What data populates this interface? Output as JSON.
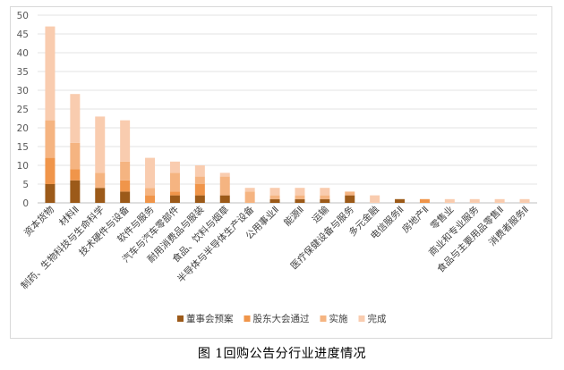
{
  "caption": "图 1回购公告分行业进度情况",
  "chart_data": {
    "type": "bar",
    "stacked": true,
    "categories": [
      "资本货物",
      "材料Ⅱ",
      "制药、生物科技与生命科学",
      "技术硬件与设备",
      "软件与服务",
      "汽车与汽车零部件",
      "耐用消费品与服装",
      "食品、饮料与烟草",
      "半导体与半导体生产设备",
      "公用事业Ⅱ",
      "能源Ⅱ",
      "运输",
      "医疗保健设备与服务",
      "多元金融",
      "电信服务Ⅱ",
      "房地产Ⅱ",
      "零售业",
      "商业和专业服务",
      "食品与主要用品零售Ⅱ",
      "消费者服务Ⅱ"
    ],
    "series": [
      {
        "name": "董事会预案",
        "color": "#9c5a19",
        "values": [
          5,
          6,
          4,
          3,
          0,
          2,
          2,
          2,
          0,
          1,
          1,
          1,
          2,
          0,
          1,
          0,
          0,
          0,
          0,
          0
        ]
      },
      {
        "name": "股东大会通过",
        "color": "#f0954a",
        "values": [
          7,
          3,
          0,
          3,
          2,
          1,
          3,
          0,
          0,
          0,
          0,
          0,
          0,
          0,
          0,
          1,
          0,
          0,
          0,
          0
        ]
      },
      {
        "name": "实施",
        "color": "#f5b481",
        "values": [
          10,
          7,
          4,
          5,
          2,
          5,
          2,
          5,
          3,
          1,
          1,
          1,
          1,
          0,
          0,
          0,
          0,
          0,
          0,
          0
        ]
      },
      {
        "name": "完成",
        "color": "#f9ccaf",
        "values": [
          25,
          13,
          15,
          11,
          8,
          3,
          3,
          1,
          1,
          2,
          2,
          2,
          0,
          2,
          0,
          0,
          1,
          1,
          1,
          1
        ]
      }
    ],
    "yticks": [
      0,
      5,
      10,
      15,
      20,
      25,
      30,
      35,
      40,
      45,
      50
    ],
    "ylim": [
      0,
      50
    ],
    "grid": true,
    "legend": "bottom"
  }
}
